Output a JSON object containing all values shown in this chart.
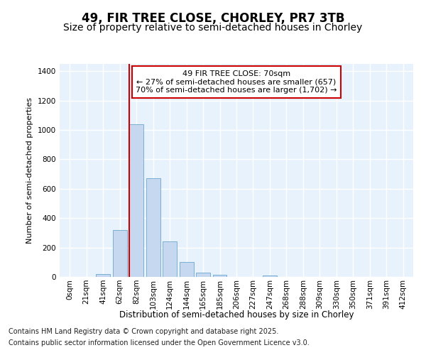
{
  "title": "49, FIR TREE CLOSE, CHORLEY, PR7 3TB",
  "subtitle": "Size of property relative to semi-detached houses in Chorley",
  "xlabel": "Distribution of semi-detached houses by size in Chorley",
  "ylabel": "Number of semi-detached properties",
  "categories": [
    "0sqm",
    "21sqm",
    "41sqm",
    "62sqm",
    "82sqm",
    "103sqm",
    "124sqm",
    "144sqm",
    "165sqm",
    "185sqm",
    "206sqm",
    "227sqm",
    "247sqm",
    "268sqm",
    "288sqm",
    "309sqm",
    "330sqm",
    "350sqm",
    "371sqm",
    "391sqm",
    "412sqm"
  ],
  "bar_heights": [
    0,
    0,
    20,
    320,
    1040,
    670,
    240,
    100,
    28,
    15,
    0,
    0,
    10,
    0,
    0,
    0,
    0,
    0,
    0,
    0,
    0
  ],
  "bar_color": "#c5d8f0",
  "bar_edge_color": "#7bafd4",
  "bar_edge_width": 0.7,
  "red_line_index": 4,
  "red_line_color": "#cc0000",
  "annotation_text": "49 FIR TREE CLOSE: 70sqm\n← 27% of semi-detached houses are smaller (657)\n70% of semi-detached houses are larger (1,702) →",
  "annotation_box_facecolor": "#ffffff",
  "annotation_box_edgecolor": "#cc0000",
  "ylim": [
    0,
    1450
  ],
  "yticks": [
    0,
    200,
    400,
    600,
    800,
    1000,
    1200,
    1400
  ],
  "fig_background": "#ffffff",
  "axes_background": "#e8f2fc",
  "grid_color": "#ffffff",
  "footer_line1": "Contains HM Land Registry data © Crown copyright and database right 2025.",
  "footer_line2": "Contains public sector information licensed under the Open Government Licence v3.0.",
  "title_fontsize": 12,
  "subtitle_fontsize": 10,
  "annotation_fontsize": 8,
  "axis_label_fontsize": 8,
  "tick_fontsize": 7.5,
  "footer_fontsize": 7
}
